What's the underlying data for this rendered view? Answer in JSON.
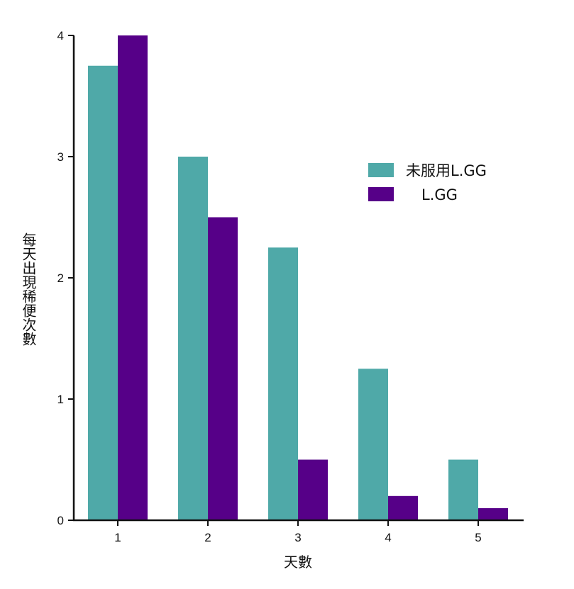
{
  "chart_data": {
    "type": "bar",
    "categories": [
      "1",
      "2",
      "3",
      "4",
      "5"
    ],
    "series": [
      {
        "name": "未服用L.GG",
        "color": "#4fa9a8",
        "values": [
          3.75,
          3.0,
          2.25,
          1.25,
          0.5
        ]
      },
      {
        "name": "L.GG",
        "color": "#560088",
        "values": [
          4.0,
          2.5,
          0.5,
          0.2,
          0.1
        ]
      }
    ],
    "yticks": [
      "0",
      "1",
      "2",
      "3",
      "4"
    ],
    "ylim": [
      0,
      4
    ],
    "xlabel": "天數",
    "ylabel": "每天出現稀便次數",
    "legend": {
      "position": "right"
    }
  }
}
